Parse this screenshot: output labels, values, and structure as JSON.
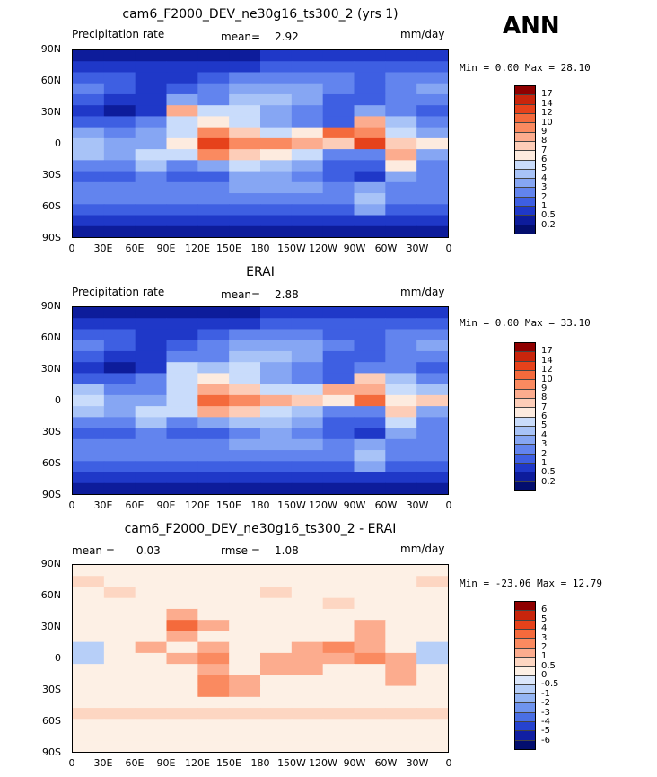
{
  "season": "ANN",
  "panels": [
    {
      "title": "cam6_F2000_DEV_ne30g16_ts300_2 (yrs 1)",
      "left_label": "Precipitation rate",
      "center_label": "mean=",
      "center_value": "2.92",
      "units": "mm/day",
      "min_label": "Min =",
      "min_value": "0.00",
      "max_label": "Max =",
      "max_value": "28.10"
    },
    {
      "title": "ERAI",
      "left_label": "Precipitation rate",
      "center_label": "mean=",
      "center_value": "2.88",
      "units": "mm/day",
      "min_label": "Min =",
      "min_value": "0.00",
      "max_label": "Max =",
      "max_value": "33.10"
    },
    {
      "title": "cam6_F2000_DEV_ne30g16_ts300_2 - ERAI",
      "left_label": "mean =",
      "left_value": "0.03",
      "center_label": "rmse =",
      "center_value": "1.08",
      "units": "mm/day",
      "min_label": "Min =",
      "min_value": "-23.06",
      "max_label": "Max =",
      "max_value": "12.79"
    }
  ],
  "colorbar_main": {
    "levels": [
      "17",
      "14",
      "12",
      "10",
      "9",
      "8",
      "7",
      "6",
      "5",
      "4",
      "3",
      "2",
      "1",
      "0.5",
      "0.2"
    ],
    "colors": [
      "#8f0000",
      "#c8250c",
      "#e6421b",
      "#f46a3c",
      "#fa8a60",
      "#fcac8e",
      "#fdcdb8",
      "#fdebdf",
      "#c9dcfb",
      "#a8c3f7",
      "#86a6f3",
      "#6284ee",
      "#3e5fe2",
      "#1f38c8",
      "#0d1c9b",
      "#030e6e"
    ]
  },
  "colorbar_diff": {
    "levels": [
      "6",
      "5",
      "4",
      "3",
      "2",
      "1",
      "0.5",
      "0",
      "-0.5",
      "-1",
      "-2",
      "-3",
      "-4",
      "-5",
      "-6"
    ],
    "colors": [
      "#8f0000",
      "#c8250c",
      "#e6421b",
      "#f46a3c",
      "#fa8a60",
      "#fcac8e",
      "#fdd6c2",
      "#fdf0e5",
      "#dbe7fb",
      "#b7cff8",
      "#94b5f3",
      "#6f94ee",
      "#4a6fe4",
      "#2643cf",
      "#101fa3",
      "#030e6e"
    ]
  },
  "chart_data": {
    "type": "heatmap",
    "variable": "Precipitation rate",
    "units": "mm/day",
    "lat_ticks": [
      "90N",
      "60N",
      "30N",
      "0",
      "30S",
      "60S",
      "90S"
    ],
    "lon_ticks": [
      "0",
      "30E",
      "60E",
      "90E",
      "120E",
      "150E",
      "180",
      "150W",
      "120W",
      "90W",
      "60W",
      "30W",
      "0"
    ],
    "lat_centers": [
      80,
      70,
      60,
      50,
      40,
      30,
      20,
      10,
      0,
      -10,
      -20,
      -30,
      -40,
      -50,
      -60,
      -70,
      -80
    ],
    "lon_centers": [
      15,
      45,
      75,
      105,
      135,
      165,
      195,
      225,
      255,
      285,
      315,
      345
    ],
    "grids": [
      [
        [
          0.2,
          0.2,
          0.2,
          0.2,
          0.2,
          0.2,
          0.5,
          0.5,
          0.5,
          0.5,
          0.5,
          0.5
        ],
        [
          0.5,
          0.5,
          0.5,
          0.5,
          0.5,
          0.5,
          1,
          1,
          1,
          1,
          1,
          1
        ],
        [
          1,
          1,
          0.5,
          0.5,
          1,
          2,
          2,
          2,
          2,
          1,
          2,
          2
        ],
        [
          2,
          1,
          0.5,
          1,
          2,
          3,
          3,
          3,
          2,
          1,
          2,
          3
        ],
        [
          1,
          0.5,
          0.5,
          3,
          2,
          4,
          4,
          3,
          1,
          1,
          2,
          2
        ],
        [
          0.5,
          0.2,
          0.5,
          8,
          5,
          5,
          3,
          2,
          1,
          3,
          2,
          1
        ],
        [
          1,
          1,
          2,
          5,
          6,
          5,
          3,
          2,
          1,
          8,
          4,
          2
        ],
        [
          3,
          2,
          3,
          5,
          9,
          7,
          5,
          6,
          10,
          9,
          5,
          3
        ],
        [
          4,
          3,
          3,
          6,
          12,
          9,
          9,
          8,
          7,
          12,
          7,
          6
        ],
        [
          4,
          3,
          5,
          5,
          9,
          7,
          6,
          5,
          2,
          2,
          8,
          3
        ],
        [
          2,
          2,
          4,
          2,
          3,
          5,
          4,
          3,
          1,
          1,
          6,
          2
        ],
        [
          1,
          1,
          2,
          1,
          1,
          3,
          3,
          2,
          1,
          0.5,
          3,
          2
        ],
        [
          2,
          2,
          2,
          2,
          2,
          3,
          3,
          3,
          2,
          3,
          2,
          2
        ],
        [
          2,
          2,
          2,
          2,
          2,
          2,
          2,
          2,
          2,
          4,
          2,
          2
        ],
        [
          1,
          1,
          1,
          1,
          1,
          1,
          1,
          1,
          1,
          3,
          1,
          1
        ],
        [
          0.5,
          0.5,
          0.5,
          0.5,
          0.5,
          0.5,
          0.5,
          0.5,
          0.5,
          0.5,
          0.5,
          0.5
        ],
        [
          0.2,
          0.2,
          0.2,
          0.2,
          0.2,
          0.2,
          0.2,
          0.2,
          0.2,
          0.2,
          0.2,
          0.2
        ]
      ],
      [
        [
          0.2,
          0.2,
          0.2,
          0.2,
          0.2,
          0.2,
          0.5,
          0.5,
          0.5,
          0.5,
          0.5,
          0.5
        ],
        [
          0.5,
          0.5,
          0.5,
          0.5,
          0.5,
          0.5,
          1,
          1,
          1,
          1,
          1,
          1
        ],
        [
          1,
          1,
          0.5,
          0.5,
          1,
          2,
          2,
          2,
          1,
          1,
          2,
          2
        ],
        [
          2,
          1,
          0.5,
          1,
          2,
          3,
          3,
          3,
          2,
          1,
          2,
          3
        ],
        [
          1,
          0.5,
          0.5,
          2,
          2,
          4,
          4,
          3,
          1,
          1,
          2,
          2
        ],
        [
          0.5,
          0.2,
          0.5,
          5,
          4,
          5,
          3,
          2,
          1,
          2,
          2,
          1
        ],
        [
          1,
          1,
          2,
          5,
          6,
          5,
          3,
          2,
          1,
          7,
          4,
          2
        ],
        [
          4,
          2,
          2,
          5,
          8,
          7,
          5,
          5,
          8,
          8,
          5,
          4
        ],
        [
          5,
          3,
          3,
          5,
          10,
          9,
          8,
          7,
          6,
          10,
          6,
          7
        ],
        [
          4,
          3,
          5,
          5,
          8,
          7,
          5,
          4,
          2,
          2,
          7,
          3
        ],
        [
          2,
          2,
          4,
          2,
          3,
          4,
          4,
          3,
          1,
          1,
          5,
          2
        ],
        [
          1,
          1,
          2,
          1,
          1,
          2,
          3,
          2,
          1,
          0.5,
          3,
          2
        ],
        [
          2,
          2,
          2,
          2,
          2,
          3,
          3,
          3,
          2,
          3,
          2,
          2
        ],
        [
          2,
          2,
          2,
          2,
          2,
          2,
          2,
          2,
          2,
          4,
          2,
          2
        ],
        [
          1,
          1,
          1,
          1,
          1,
          1,
          1,
          1,
          1,
          3,
          1,
          1
        ],
        [
          0.5,
          0.5,
          0.5,
          0.5,
          0.5,
          0.5,
          0.5,
          0.5,
          0.5,
          0.5,
          0.5,
          0.5
        ],
        [
          0.2,
          0.2,
          0.2,
          0.2,
          0.2,
          0.2,
          0.2,
          0.2,
          0.2,
          0.2,
          0.2,
          0.2
        ]
      ],
      [
        [
          0,
          0,
          0,
          0,
          0,
          0,
          0,
          0,
          0,
          0,
          0,
          0
        ],
        [
          0.5,
          0,
          0,
          0,
          0,
          0,
          0,
          0,
          0,
          0,
          0,
          0.5
        ],
        [
          0,
          0.5,
          0,
          0,
          0,
          0,
          0.5,
          0,
          0,
          0,
          0,
          0
        ],
        [
          0,
          0,
          0,
          0,
          0,
          0,
          0,
          0,
          0.5,
          0,
          0,
          0
        ],
        [
          0,
          0,
          0,
          1,
          0,
          0,
          0,
          0,
          0,
          0,
          0,
          0
        ],
        [
          0,
          0,
          0,
          3,
          1,
          0,
          0,
          0,
          0,
          1,
          0,
          0
        ],
        [
          0,
          0,
          0,
          1,
          0,
          0,
          0,
          0,
          0,
          1,
          0,
          0
        ],
        [
          -1,
          0,
          1,
          0,
          1,
          0,
          0,
          1,
          2,
          1,
          0,
          -1
        ],
        [
          -1,
          0,
          0,
          1,
          2,
          0,
          1,
          1,
          1,
          2,
          1,
          -1
        ],
        [
          0,
          0,
          0,
          0,
          1,
          0,
          1,
          1,
          0,
          0,
          1,
          0
        ],
        [
          0,
          0,
          0,
          0,
          2,
          1,
          0,
          0,
          0,
          0,
          1,
          0
        ],
        [
          0,
          0,
          0,
          0,
          2,
          1,
          0,
          0,
          0,
          0,
          0,
          0
        ],
        [
          0,
          0,
          0,
          0,
          0,
          0,
          0,
          0,
          0,
          0,
          0,
          0
        ],
        [
          0.5,
          0.5,
          0.5,
          0.5,
          0.5,
          0.5,
          0.5,
          0.5,
          0.5,
          0.5,
          0.5,
          0.5
        ],
        [
          0,
          0,
          0,
          0,
          0,
          0,
          0,
          0,
          0,
          0,
          0,
          0
        ],
        [
          0,
          0,
          0,
          0,
          0,
          0,
          0,
          0,
          0,
          0,
          0,
          0
        ],
        [
          0,
          0,
          0,
          0,
          0,
          0,
          0,
          0,
          0,
          0,
          0,
          0
        ]
      ]
    ]
  }
}
